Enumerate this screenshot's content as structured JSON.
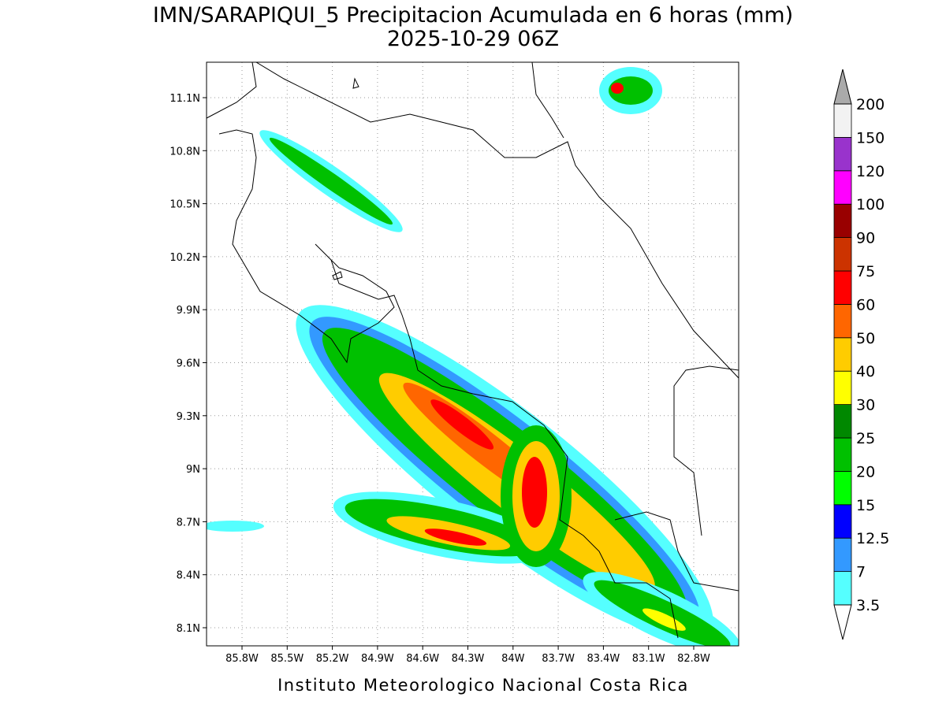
{
  "title": "IMN/SARAPIQUI_5 Precipitacion Acumulada en 6 horas (mm)",
  "subtitle": "2025-10-29 06Z",
  "footer": "Instituto Meteorologico Nacional Costa Rica",
  "lon_ticks": [
    "85.8W",
    "85.5W",
    "85.2W",
    "84.9W",
    "84.6W",
    "84.3W",
    "84W",
    "83.7W",
    "83.4W",
    "83.1W",
    "82.8W"
  ],
  "lat_ticks": [
    "11.1N",
    "10.8N",
    "10.5N",
    "10.2N",
    "9.9N",
    "9.6N",
    "9.3N",
    "9N",
    "8.7N",
    "8.4N",
    "8.1N"
  ],
  "colorbar": {
    "labels": [
      "3.5",
      "7",
      "12.5",
      "15",
      "20",
      "25",
      "30",
      "40",
      "50",
      "60",
      "75",
      "90",
      "100",
      "120",
      "150",
      "200"
    ],
    "colors": [
      "#55ffff",
      "#3399ff",
      "#0000ff",
      "#00ff00",
      "#00c000",
      "#008800",
      "#ffff00",
      "#ffcc00",
      "#ff6600",
      "#ff0000",
      "#cc3300",
      "#990000",
      "#ff00ff",
      "#9933cc",
      "#f2f2f2"
    ],
    "low_color": "#ffffff",
    "high_color": "#aaaaaa"
  }
}
